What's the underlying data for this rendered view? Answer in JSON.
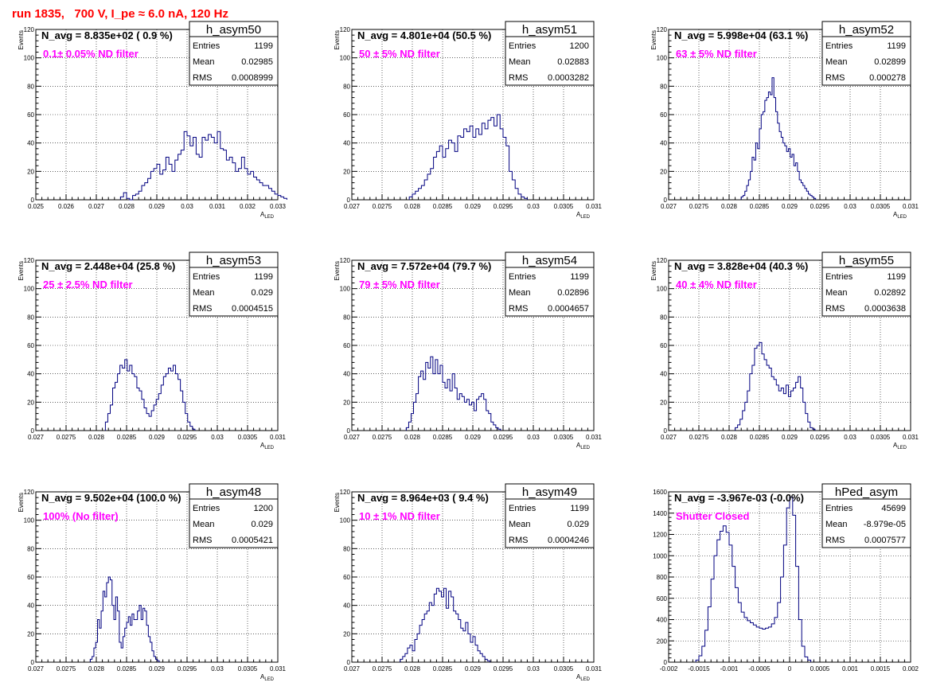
{
  "page_title": "run 1835,   700 V, I_pe ≈ 6.0 nA, 120 Hz",
  "colors": {
    "histogram": "#000080",
    "annotation": "#ff00ff",
    "title": "#ff0000",
    "grid": "#000000"
  },
  "chart_data": [
    {
      "type": "bar",
      "title": "h_asym50",
      "xlabel": "A_LED",
      "ylabel": "Events",
      "xlim": [
        0.025,
        0.033
      ],
      "ylim": [
        0,
        120
      ],
      "xticks": [
        0.025,
        0.026,
        0.027,
        0.028,
        0.029,
        0.03,
        0.031,
        0.032,
        0.033
      ],
      "xtick_labels": [
        "0.025",
        "0.026",
        "0.027",
        "0.028",
        "0.029",
        "0.03",
        "0.031",
        "0.032",
        "0.033"
      ],
      "yticks": [
        0,
        20,
        40,
        60,
        80,
        100,
        120
      ],
      "ytick_labels": [
        "0",
        "20",
        "40",
        "60",
        "80",
        "100",
        "120"
      ],
      "navg": "N_avg = 8.835e+02 ( 0.9 %)",
      "filter": "0.1± 0.05% ND filter",
      "stats": [
        [
          "Entries",
          "1199"
        ],
        [
          "Mean",
          "0.02985"
        ],
        [
          "RMS",
          "0.0008999"
        ]
      ],
      "grid": true,
      "bins": {
        "start": 0.0278,
        "width": 0.0001,
        "values": [
          2,
          5,
          1,
          0,
          3,
          4,
          6,
          10,
          12,
          15,
          20,
          22,
          25,
          18,
          21,
          30,
          25,
          20,
          28,
          32,
          35,
          48,
          45,
          38,
          44,
          32,
          30,
          44,
          42,
          46,
          44,
          40,
          48,
          36,
          35,
          28,
          30,
          26,
          20,
          22,
          30,
          22,
          18,
          20,
          16,
          14,
          12,
          10,
          10,
          8,
          6,
          4,
          3,
          2,
          1
        ]
      }
    },
    {
      "type": "bar",
      "title": "h_asym51",
      "xlabel": "A_LED",
      "ylabel": "Events",
      "xlim": [
        0.027,
        0.031
      ],
      "ylim": [
        0,
        120
      ],
      "xticks": [
        0.027,
        0.0275,
        0.028,
        0.0285,
        0.029,
        0.0295,
        0.03,
        0.0305,
        0.031
      ],
      "xtick_labels": [
        "0.027",
        "0.0275",
        "0.028",
        "0.0285",
        "0.029",
        "0.0295",
        "0.03",
        "0.0305",
        "0.031"
      ],
      "yticks": [
        0,
        20,
        40,
        60,
        80,
        100,
        120
      ],
      "ytick_labels": [
        "0",
        "20",
        "40",
        "60",
        "80",
        "100",
        "120"
      ],
      "navg": "N_avg = 4.801e+04 (50.5 %)",
      "filter": "50 ± 5% ND filter",
      "stats": [
        [
          "Entries",
          "1200"
        ],
        [
          "Mean",
          "0.02883"
        ],
        [
          "RMS",
          "0.0003282"
        ]
      ],
      "grid": true,
      "bins": {
        "start": 0.02795,
        "width": 5e-05,
        "values": [
          2,
          4,
          6,
          8,
          10,
          14,
          18,
          22,
          30,
          34,
          38,
          30,
          36,
          42,
          40,
          34,
          45,
          44,
          50,
          48,
          52,
          44,
          50,
          46,
          54,
          50,
          56,
          58,
          52,
          60,
          50,
          44,
          38,
          20,
          14,
          8,
          4,
          2,
          1
        ]
      }
    },
    {
      "type": "bar",
      "title": "h_asym52",
      "xlabel": "A_LED",
      "ylabel": "Events",
      "xlim": [
        0.027,
        0.031
      ],
      "ylim": [
        0,
        120
      ],
      "xticks": [
        0.027,
        0.0275,
        0.028,
        0.0285,
        0.029,
        0.0295,
        0.03,
        0.0305,
        0.031
      ],
      "xtick_labels": [
        "0.027",
        "0.0275",
        "0.028",
        "0.0285",
        "0.029",
        "0.0295",
        "0.03",
        "0.0305",
        "0.031"
      ],
      "yticks": [
        0,
        20,
        40,
        60,
        80,
        100,
        120
      ],
      "ytick_labels": [
        "0",
        "20",
        "40",
        "60",
        "80",
        "100",
        "120"
      ],
      "navg": "N_avg = 5.998e+04 (63.1 %)",
      "filter": "63 ± 5% ND filter",
      "stats": [
        [
          "Entries",
          "1199"
        ],
        [
          "Mean",
          "0.02899"
        ],
        [
          "RMS",
          "0.000278"
        ]
      ],
      "grid": true,
      "bins": {
        "start": 0.0282,
        "width": 3e-05,
        "values": [
          2,
          3,
          6,
          10,
          14,
          20,
          30,
          28,
          40,
          36,
          50,
          60,
          62,
          70,
          72,
          76,
          74,
          86,
          72,
          62,
          54,
          48,
          44,
          40,
          38,
          34,
          36,
          30,
          32,
          24,
          26,
          20,
          14,
          12,
          10,
          8,
          6,
          4,
          3,
          2,
          1
        ]
      }
    },
    {
      "type": "bar",
      "title": "h_asym53",
      "xlabel": "A_LED",
      "ylabel": "Events",
      "xlim": [
        0.027,
        0.031
      ],
      "ylim": [
        0,
        120
      ],
      "xticks": [
        0.027,
        0.0275,
        0.028,
        0.0285,
        0.029,
        0.0295,
        0.03,
        0.0305,
        0.031
      ],
      "xtick_labels": [
        "0.027",
        "0.0275",
        "0.028",
        "0.0285",
        "0.029",
        "0.0295",
        "0.03",
        "0.0305",
        "0.031"
      ],
      "yticks": [
        0,
        20,
        40,
        60,
        80,
        100,
        120
      ],
      "ytick_labels": [
        "0",
        "20",
        "40",
        "60",
        "80",
        "100",
        "120"
      ],
      "navg": "N_avg = 2.448e+04 (25.8 %)",
      "filter": "25 ± 2.5% ND filter",
      "stats": [
        [
          "Entries",
          "1199"
        ],
        [
          "Mean",
          "0.029"
        ],
        [
          "RMS",
          "0.0004515"
        ]
      ],
      "grid": true,
      "bins": {
        "start": 0.02815,
        "width": 4e-05,
        "values": [
          6,
          12,
          18,
          30,
          34,
          40,
          46,
          44,
          50,
          42,
          46,
          40,
          38,
          30,
          28,
          22,
          16,
          12,
          10,
          14,
          18,
          22,
          26,
          32,
          38,
          40,
          44,
          42,
          46,
          40,
          36,
          28,
          20,
          12,
          6,
          3,
          1
        ]
      }
    },
    {
      "type": "bar",
      "title": "h_asym54",
      "xlabel": "A_LED",
      "ylabel": "Events",
      "xlim": [
        0.027,
        0.031
      ],
      "ylim": [
        0,
        120
      ],
      "xticks": [
        0.027,
        0.0275,
        0.028,
        0.0285,
        0.029,
        0.0295,
        0.03,
        0.0305,
        0.031
      ],
      "xtick_labels": [
        "0.027",
        "0.0275",
        "0.028",
        "0.0285",
        "0.029",
        "0.0295",
        "0.03",
        "0.0305",
        "0.031"
      ],
      "yticks": [
        0,
        20,
        40,
        60,
        80,
        100,
        120
      ],
      "ytick_labels": [
        "0",
        "20",
        "40",
        "60",
        "80",
        "100",
        "120"
      ],
      "navg": "N_avg = 7.572e+04 (79.7 %)",
      "filter": "79 ± 5% ND filter",
      "stats": [
        [
          "Entries",
          "1199"
        ],
        [
          "Mean",
          "0.02896"
        ],
        [
          "RMS",
          "0.0004657"
        ]
      ],
      "grid": true,
      "bins": {
        "start": 0.0279,
        "width": 4e-05,
        "values": [
          2,
          6,
          12,
          20,
          26,
          38,
          42,
          36,
          48,
          44,
          52,
          40,
          50,
          40,
          46,
          34,
          30,
          36,
          28,
          40,
          30,
          22,
          26,
          24,
          20,
          22,
          18,
          20,
          14,
          22,
          24,
          26,
          22,
          14,
          12,
          6,
          4,
          2,
          1
        ]
      }
    },
    {
      "type": "bar",
      "title": "h_asym55",
      "xlabel": "A_LED",
      "ylabel": "Events",
      "xlim": [
        0.027,
        0.031
      ],
      "ylim": [
        0,
        120
      ],
      "xticks": [
        0.027,
        0.0275,
        0.028,
        0.0285,
        0.029,
        0.0295,
        0.03,
        0.0305,
        0.031
      ],
      "xtick_labels": [
        "0.027",
        "0.0275",
        "0.028",
        "0.0285",
        "0.029",
        "0.0295",
        "0.03",
        "0.0305",
        "0.031"
      ],
      "yticks": [
        0,
        20,
        40,
        60,
        80,
        100,
        120
      ],
      "ytick_labels": [
        "0",
        "20",
        "40",
        "60",
        "80",
        "100",
        "120"
      ],
      "navg": "N_avg = 3.828e+04 (40.3 %)",
      "filter": "40 ± 4% ND filter",
      "stats": [
        [
          "Entries",
          "1199"
        ],
        [
          "Mean",
          "0.02892"
        ],
        [
          "RMS",
          "0.0003638"
        ]
      ],
      "grid": true,
      "bins": {
        "start": 0.0281,
        "width": 4e-05,
        "values": [
          2,
          4,
          8,
          14,
          20,
          28,
          40,
          46,
          58,
          60,
          62,
          54,
          50,
          46,
          44,
          38,
          36,
          32,
          28,
          30,
          26,
          32,
          24,
          28,
          30,
          34,
          38,
          30,
          20,
          12,
          6,
          2,
          1
        ]
      }
    },
    {
      "type": "bar",
      "title": "h_asym48",
      "xlabel": "A_LED",
      "ylabel": "Events",
      "xlim": [
        0.027,
        0.031
      ],
      "ylim": [
        0,
        120
      ],
      "xticks": [
        0.027,
        0.0275,
        0.028,
        0.0285,
        0.029,
        0.0295,
        0.03,
        0.0305,
        0.031
      ],
      "xtick_labels": [
        "0.027",
        "0.0275",
        "0.028",
        "0.0285",
        "0.029",
        "0.0295",
        "0.03",
        "0.0305",
        "0.031"
      ],
      "yticks": [
        0,
        20,
        40,
        60,
        80,
        100,
        120
      ],
      "ytick_labels": [
        "0",
        "20",
        "40",
        "60",
        "80",
        "100",
        "120"
      ],
      "navg": "N_avg = 9.502e+04 (100.0 %)",
      "filter": "100% (No filter)",
      "stats": [
        [
          "Entries",
          "1200"
        ],
        [
          "Mean",
          "0.029"
        ],
        [
          "RMS",
          "0.0005421"
        ]
      ],
      "grid": true,
      "bins": {
        "start": 0.0279,
        "width": 3e-05,
        "values": [
          2,
          4,
          10,
          14,
          30,
          24,
          36,
          50,
          46,
          56,
          60,
          58,
          40,
          30,
          46,
          36,
          14,
          10,
          18,
          24,
          28,
          32,
          26,
          34,
          30,
          30,
          36,
          40,
          30,
          38,
          36,
          26,
          18,
          14,
          8,
          4,
          2,
          1
        ]
      }
    },
    {
      "type": "bar",
      "title": "h_asym49",
      "xlabel": "A_LED",
      "ylabel": "Events",
      "xlim": [
        0.027,
        0.031
      ],
      "ylim": [
        0,
        120
      ],
      "xticks": [
        0.027,
        0.0275,
        0.028,
        0.0285,
        0.029,
        0.0295,
        0.03,
        0.0305,
        0.031
      ],
      "xtick_labels": [
        "0.027",
        "0.0275",
        "0.028",
        "0.0285",
        "0.029",
        "0.0295",
        "0.03",
        "0.0305",
        "0.031"
      ],
      "yticks": [
        0,
        20,
        40,
        60,
        80,
        100,
        120
      ],
      "ytick_labels": [
        "0",
        "20",
        "40",
        "60",
        "80",
        "100",
        "120"
      ],
      "navg": "N_avg = 8.964e+03 ( 9.4 %)",
      "filter": "10 ± 1% ND filter",
      "stats": [
        [
          "Entries",
          "1199"
        ],
        [
          "Mean",
          "0.029"
        ],
        [
          "RMS",
          "0.0004246"
        ]
      ],
      "grid": true,
      "bins": {
        "start": 0.0278,
        "width": 4e-05,
        "values": [
          2,
          4,
          6,
          10,
          12,
          8,
          16,
          20,
          26,
          30,
          34,
          36,
          42,
          40,
          48,
          52,
          50,
          46,
          52,
          38,
          50,
          46,
          36,
          34,
          30,
          24,
          22,
          28,
          20,
          14,
          18,
          12,
          8,
          6,
          4,
          2,
          1
        ]
      }
    },
    {
      "type": "bar",
      "title": "hPed_asym",
      "xlabel": "",
      "ylabel": "",
      "xlim": [
        -0.002,
        0.002
      ],
      "ylim": [
        0,
        1600
      ],
      "xticks": [
        -0.002,
        -0.0015,
        -0.001,
        -0.0005,
        0,
        0.0005,
        0.001,
        0.0015,
        0.002
      ],
      "xtick_labels": [
        "-0.002",
        "-0.0015",
        "-0.001",
        "-0.0005",
        "0",
        "0.0005",
        "0.001",
        "0.0015",
        "0.002"
      ],
      "yticks": [
        0,
        200,
        400,
        600,
        800,
        1000,
        1200,
        1400,
        1600
      ],
      "ytick_labels": [
        "0",
        "200",
        "400",
        "600",
        "800",
        "1000",
        "1200",
        "1400",
        "1600"
      ],
      "navg": "N_avg = -3.967e-03 (-0.0%)",
      "filter": "Shutter Closed",
      "stats": [
        [
          "Entries",
          "45699"
        ],
        [
          "Mean",
          "-8.979e-05"
        ],
        [
          "RMS",
          "0.0007577"
        ]
      ],
      "grid": true,
      "bins": {
        "start": -0.00155,
        "width": 5e-05,
        "values": [
          20,
          60,
          150,
          300,
          520,
          780,
          1000,
          1150,
          1230,
          1280,
          1220,
          1100,
          900,
          700,
          560,
          470,
          420,
          390,
          370,
          350,
          330,
          320,
          310,
          320,
          330,
          360,
          420,
          560,
          800,
          1100,
          1450,
          1550,
          1380,
          900,
          400,
          150,
          50,
          20
        ]
      }
    }
  ]
}
